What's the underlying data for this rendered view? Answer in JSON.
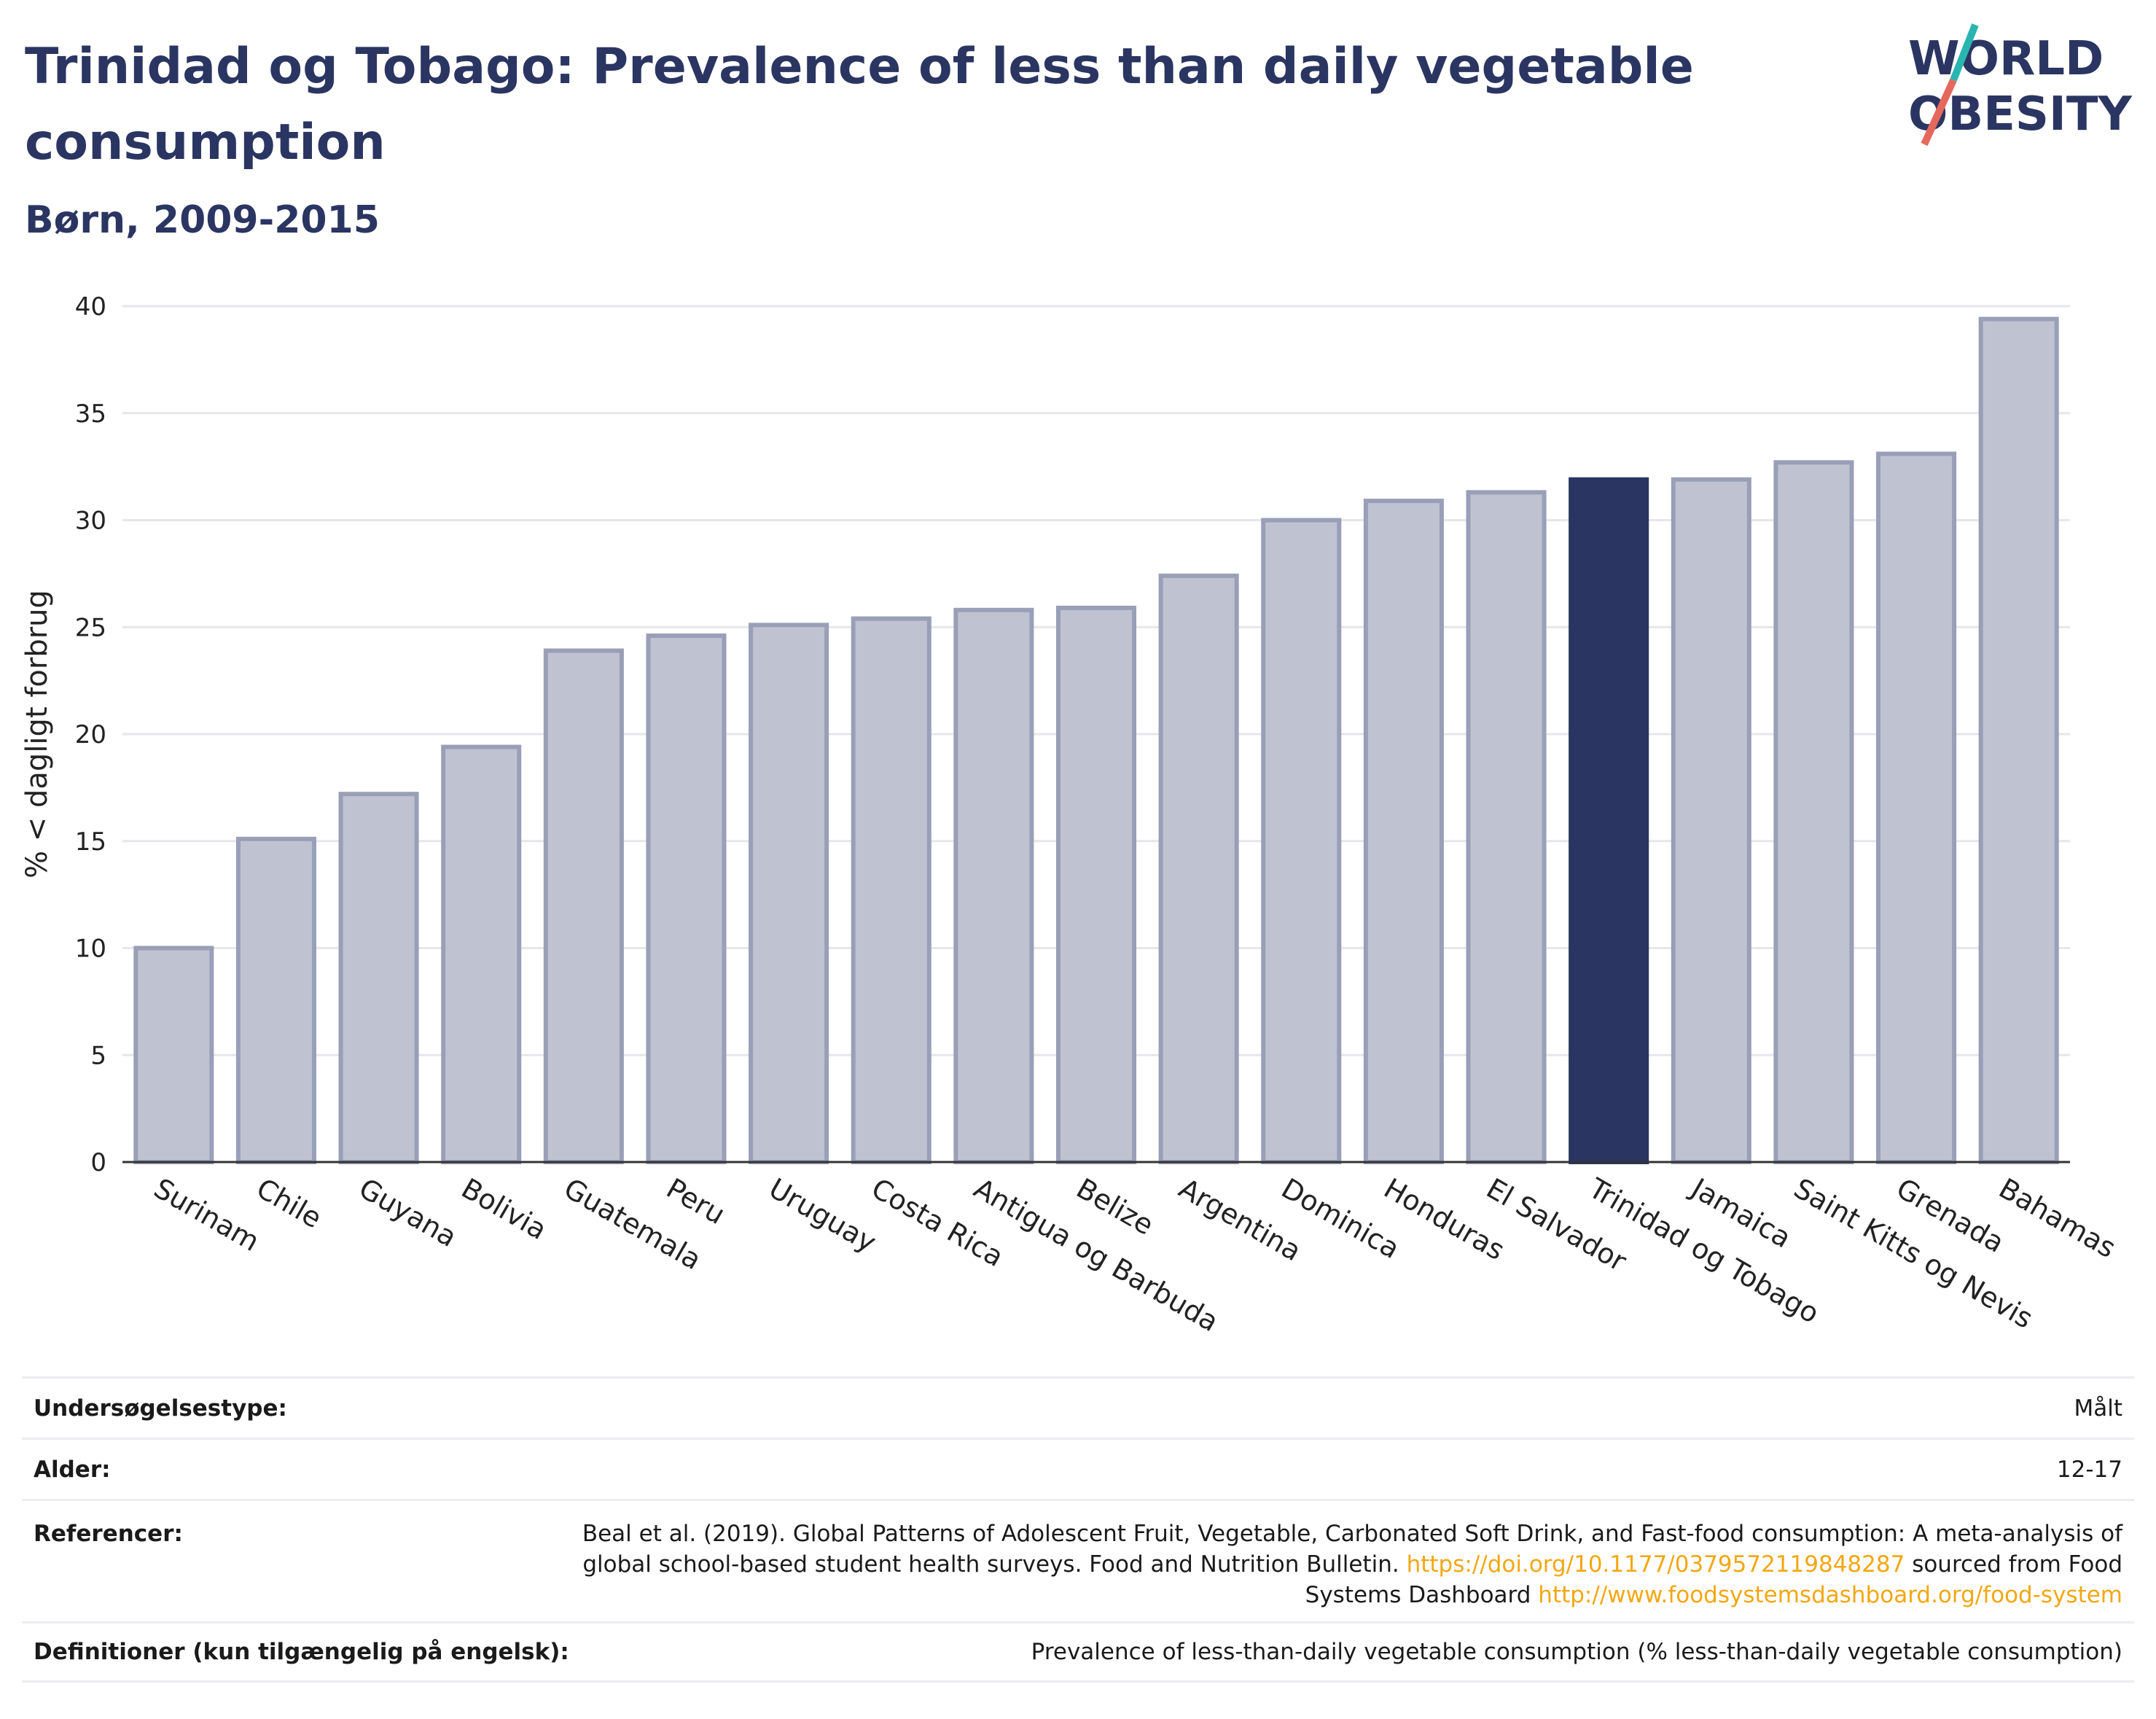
{
  "title": "Trinidad og Tobago: Prevalence of less than daily vegetable consumption",
  "subtitle": "Børn, 2009-2015",
  "logo": {
    "line1": "WORLD",
    "line2": "OBESITY",
    "accent_teal": "#2bb5b0",
    "accent_red": "#e5685c"
  },
  "colors": {
    "bar": "#bfc2d0",
    "bar_edge": "#9a9fb8",
    "highlight": "#2b3562",
    "grid": "#e6e6ec"
  },
  "chart_data": {
    "type": "bar",
    "categories": [
      "Surinam",
      "Chile",
      "Guyana",
      "Bolivia",
      "Guatemala",
      "Peru",
      "Uruguay",
      "Costa Rica",
      "Antigua og Barbuda",
      "Belize",
      "Argentina",
      "Dominica",
      "Honduras",
      "El Salvador",
      "Trinidad og Tobago",
      "Jamaica",
      "Saint Kitts og Nevis",
      "Grenada",
      "Bahamas"
    ],
    "values": [
      10.0,
      15.1,
      17.2,
      19.4,
      23.9,
      24.6,
      25.1,
      25.4,
      25.8,
      25.9,
      27.4,
      30.0,
      30.9,
      31.3,
      31.9,
      31.9,
      32.7,
      33.1,
      39.4
    ],
    "highlight": "Trinidad og Tobago",
    "ylabel": "% < dagligt forbrug",
    "ylim": [
      0,
      40
    ],
    "yticks": [
      "0",
      "5",
      "10",
      "15",
      "20",
      "25",
      "30",
      "35",
      "40"
    ],
    "grid": true
  },
  "info": {
    "survey_type": {
      "label": "Undersøgelsestype:",
      "value": "Målt"
    },
    "age": {
      "label": "Alder:",
      "value": "12-17"
    },
    "references": {
      "label": "Referencer:",
      "text1": "Beal et al. (2019). Global Patterns of Adolescent Fruit, Vegetable, Carbonated Soft Drink, and Fast-food consumption: A meta-analysis of global school-based student health surveys. Food and Nutrition Bulletin.",
      "link1": "https://doi.org/10.1177/0379572119848287",
      "text2": "sourced from Food Systems Dashboard",
      "link2": "http://www.foodsystemsdashboard.org/food-system"
    },
    "definitions": {
      "label": "Definitioner (kun tilgængelig på engelsk):",
      "value": "Prevalence of less-than-daily vegetable consumption (% less-than-daily vegetable consumption)"
    }
  }
}
